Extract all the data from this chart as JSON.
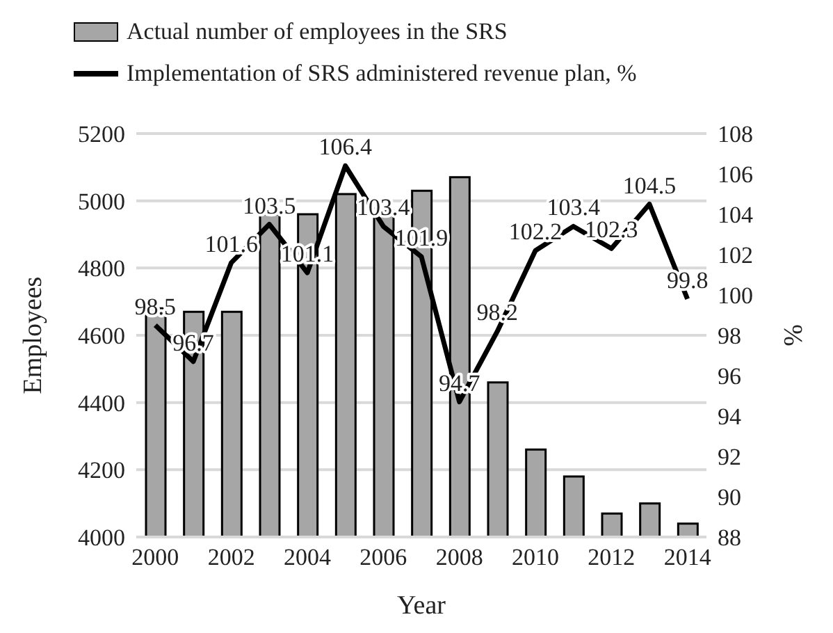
{
  "chart_data": {
    "type": "bar",
    "xlabel": "Year",
    "ylabel": "Employees",
    "y2label": "%",
    "categories": [
      "2000",
      null,
      "2002",
      null,
      "2004",
      null,
      "2006",
      null,
      "2008",
      null,
      "2010",
      null,
      "2012",
      null,
      "2014"
    ],
    "series": [
      {
        "name": "Actual number of employees in the SRS",
        "color": "#a6a6a6",
        "values": [
          4680,
          4670,
          4670,
          4960,
          4960,
          5020,
          4970,
          5030,
          5070,
          4460,
          4260,
          4180,
          4070,
          4100,
          4040
        ]
      },
      {
        "name": "Implementation of SRS administered revenue plan, %",
        "type": "line",
        "axis": "y2",
        "color": "#000000",
        "values": [
          98.5,
          96.7,
          101.6,
          103.5,
          101.1,
          106.4,
          103.4,
          101.9,
          94.7,
          98.2,
          102.2,
          103.4,
          102.3,
          104.5,
          99.8
        ],
        "value_labels": [
          "98.5",
          "96.7",
          "101.6",
          "103.5",
          "101.1",
          "106.4",
          "103.4",
          "101.9",
          "94.7",
          "98.2",
          "102.2",
          "103.4",
          "102.3",
          "104.5",
          "99.8"
        ]
      }
    ],
    "ylim": [
      4000,
      5200
    ],
    "yticks": [
      4000,
      4200,
      4400,
      4600,
      4800,
      5000,
      5200
    ],
    "y2lim": [
      88,
      108
    ],
    "y2ticks": [
      88,
      90,
      92,
      94,
      96,
      98,
      100,
      102,
      104,
      106,
      108
    ],
    "grid": "y",
    "legend": "top left",
    "marker": "none"
  }
}
